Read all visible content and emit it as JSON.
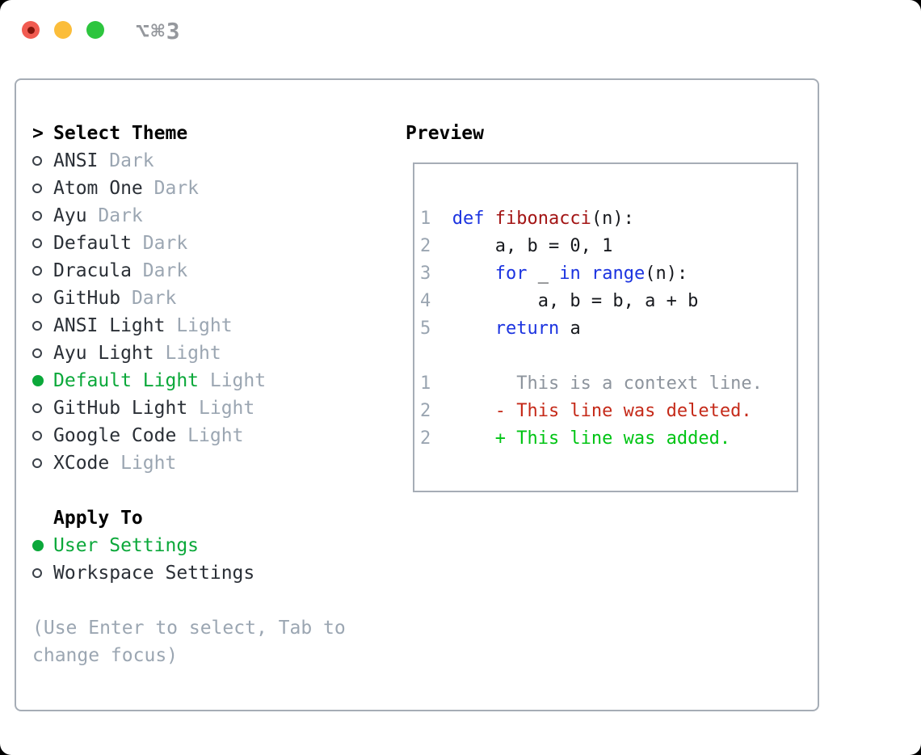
{
  "titlebar": {
    "shortcut": "⌥⌘3",
    "buttons": [
      {
        "role": "close",
        "has_dot": true
      },
      {
        "role": "minimize",
        "has_dot": false
      },
      {
        "role": "zoom",
        "has_dot": false
      }
    ]
  },
  "theme_section": {
    "header": "Select Theme",
    "header_marker": ">",
    "items": [
      {
        "name": "ANSI",
        "variant": "Dark",
        "selected": false
      },
      {
        "name": "Atom One",
        "variant": "Dark",
        "selected": false
      },
      {
        "name": "Ayu",
        "variant": "Dark",
        "selected": false
      },
      {
        "name": "Default",
        "variant": "Dark",
        "selected": false
      },
      {
        "name": "Dracula",
        "variant": "Dark",
        "selected": false
      },
      {
        "name": "GitHub",
        "variant": "Dark",
        "selected": false
      },
      {
        "name": "ANSI Light",
        "variant": "Light",
        "selected": false
      },
      {
        "name": "Ayu Light",
        "variant": "Light",
        "selected": false
      },
      {
        "name": "Default Light",
        "variant": "Light",
        "selected": true
      },
      {
        "name": "GitHub Light",
        "variant": "Light",
        "selected": false
      },
      {
        "name": "Google Code",
        "variant": "Light",
        "selected": false
      },
      {
        "name": "XCode",
        "variant": "Light",
        "selected": false
      }
    ]
  },
  "apply_section": {
    "header": "Apply To",
    "items": [
      {
        "label": "User Settings",
        "selected": true
      },
      {
        "label": "Workspace Settings",
        "selected": false
      }
    ]
  },
  "hint": "(Use Enter to select, Tab to change focus)",
  "preview": {
    "header": "Preview",
    "lines": [
      {
        "num": "1",
        "segments": [
          {
            "text": "def ",
            "color": "keyword"
          },
          {
            "text": "fibonacci",
            "color": "function"
          },
          {
            "text": "(n):",
            "color": "code"
          }
        ]
      },
      {
        "num": "2",
        "segments": [
          {
            "text": "    a, b = 0, 1",
            "color": "code"
          }
        ]
      },
      {
        "num": "3",
        "segments": [
          {
            "text": "    ",
            "color": "code"
          },
          {
            "text": "for",
            "color": "keyword"
          },
          {
            "text": " _ ",
            "color": "code"
          },
          {
            "text": "in",
            "color": "keyword"
          },
          {
            "text": " ",
            "color": "code"
          },
          {
            "text": "range",
            "color": "keyword"
          },
          {
            "text": "(n):",
            "color": "code"
          }
        ]
      },
      {
        "num": "4",
        "segments": [
          {
            "text": "        a, b = b, a + b",
            "color": "code"
          }
        ]
      },
      {
        "num": "5",
        "segments": [
          {
            "text": "    ",
            "color": "code"
          },
          {
            "text": "return",
            "color": "keyword"
          },
          {
            "text": " a",
            "color": "code"
          }
        ]
      },
      {
        "num": "",
        "segments": []
      },
      {
        "num": "1",
        "segments": [
          {
            "text": "      This is a context line.",
            "color": "context"
          }
        ]
      },
      {
        "num": "2",
        "segments": [
          {
            "text": "    - This line was deleted.",
            "color": "deleted"
          }
        ]
      },
      {
        "num": "2",
        "segments": [
          {
            "text": "    + This line was added.",
            "color": "added"
          }
        ]
      }
    ]
  },
  "colors": {
    "keyword": "#1b33e0",
    "function": "#a31515",
    "code": "#17191e",
    "context": "#8d949d",
    "deleted": "#c52a19",
    "added": "#00c414",
    "line_number": "#9aa5b1",
    "selected_green": "#0ba83a",
    "name_text": "#2a2f36",
    "variant_gray": "#9ba6b2",
    "hint_gray": "#9ba6b2",
    "border_gray": "#a6adb6",
    "title_gray": "#95989d",
    "traffic_red": "#f15b51",
    "traffic_dot": "#82140b",
    "traffic_yellow": "#fbbd3a",
    "traffic_green": "#2dc53e"
  }
}
